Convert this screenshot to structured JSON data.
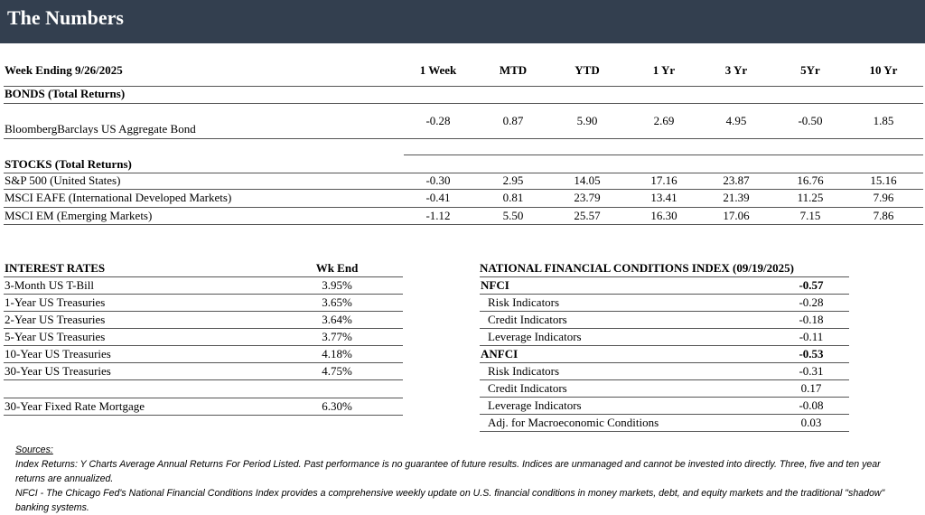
{
  "header": {
    "title": "The Numbers"
  },
  "returns_table": {
    "columns": [
      "Week Ending 9/26/2025",
      "1 Week",
      "MTD",
      "YTD",
      "1 Yr",
      "3 Yr",
      "5Yr",
      "10 Yr"
    ],
    "sections": [
      {
        "title": "BONDS (Total Returns)",
        "rows": [
          {
            "label": "BloombergBarclays US Aggregate Bond",
            "values": [
              "-0.28",
              "0.87",
              "5.90",
              "2.69",
              "4.95",
              "-0.50",
              "1.85"
            ]
          }
        ]
      },
      {
        "title": "STOCKS (Total Returns)",
        "rows": [
          {
            "label": "S&P 500 (United States)",
            "values": [
              "-0.30",
              "2.95",
              "14.05",
              "17.16",
              "23.87",
              "16.76",
              "15.16"
            ]
          },
          {
            "label": "MSCI EAFE (International Developed Markets)",
            "values": [
              "-0.41",
              "0.81",
              "23.79",
              "13.41",
              "21.39",
              "11.25",
              "7.96"
            ]
          },
          {
            "label": "MSCI EM (Emerging Markets)",
            "values": [
              "-1.12",
              "5.50",
              "25.57",
              "16.30",
              "17.06",
              "7.15",
              "7.86"
            ]
          }
        ]
      }
    ]
  },
  "interest_rates": {
    "title": "INTEREST RATES",
    "column": "Wk End",
    "rows": [
      [
        "3-Month US T-Bill",
        "3.95%"
      ],
      [
        "1-Year US Treasuries",
        "3.65%"
      ],
      [
        "2-Year US Treasuries",
        "3.64%"
      ],
      [
        "5-Year US Treasuries",
        "3.77%"
      ],
      [
        "10-Year US Treasuries",
        "4.18%"
      ],
      [
        "30-Year US Treasuries",
        "4.75%"
      ],
      [
        "30-Year Fixed Rate Mortgage",
        "6.30%"
      ]
    ]
  },
  "nfci": {
    "title": "NATIONAL FINANCIAL CONDITIONS INDEX (09/19/2025)",
    "rows": [
      {
        "label": "NFCI",
        "value": "-0.57",
        "bold": true
      },
      {
        "label": "Risk Indicators",
        "value": "-0.28",
        "bold": false
      },
      {
        "label": "Credit Indicators",
        "value": "-0.18",
        "bold": false
      },
      {
        "label": "Leverage Indicators",
        "value": "-0.11",
        "bold": false
      },
      {
        "label": "ANFCI",
        "value": "-0.53",
        "bold": true
      },
      {
        "label": "Risk Indicators",
        "value": "-0.31",
        "bold": false
      },
      {
        "label": "Credit Indicators",
        "value": "0.17",
        "bold": false
      },
      {
        "label": "Leverage Indicators",
        "value": "-0.08",
        "bold": false
      },
      {
        "label": "Adj. for Macroeconomic Conditions",
        "value": "0.03",
        "bold": false
      }
    ]
  },
  "sources": {
    "heading": "Sources:",
    "notes": [
      "Index Returns:  Y Charts Average Annual Returns For Period Listed.  Past performance is no guarantee of future results.  Indices are unmanaged and cannot be invested into directly.  Three, five and ten year returns are annualized.",
      "NFCI - The Chicago Fed's National Financial Conditions Index provides a comprehensive weekly update on U.S. financial conditions in money markets, debt, and equity markets and the traditional \"shadow\" banking systems."
    ]
  }
}
